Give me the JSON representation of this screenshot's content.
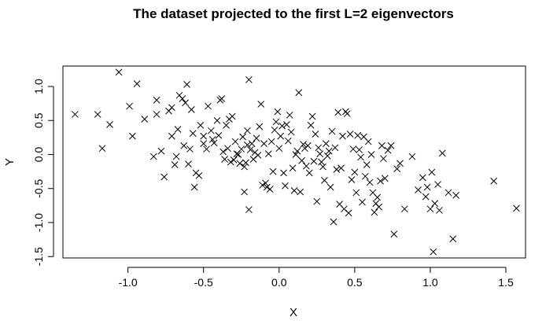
{
  "chart_data": {
    "type": "scatter",
    "title": "The dataset projected to the first L=2 eigenvectors",
    "xlabel": "X",
    "ylabel": "Y",
    "xlim": [
      -1.43,
      1.63
    ],
    "ylim": [
      -1.52,
      1.3
    ],
    "xticks": [
      -1.0,
      -0.5,
      0.0,
      0.5,
      1.0,
      1.5
    ],
    "xtick_labels": [
      "-1.0",
      "-0.5",
      "0.0",
      "0.5",
      "1.0",
      "1.5"
    ],
    "yticks": [
      -1.5,
      -1.0,
      -0.5,
      0.0,
      0.5,
      1.0
    ],
    "ytick_labels": [
      "-1.5",
      "-1.0",
      "-0.5",
      "0.0",
      "0.5",
      "1.0"
    ],
    "marker": "x",
    "grid": false,
    "points": [
      [
        -1.35,
        0.59
      ],
      [
        -1.2,
        0.59
      ],
      [
        -1.17,
        0.09
      ],
      [
        -1.12,
        0.44
      ],
      [
        -1.06,
        1.21
      ],
      [
        -0.99,
        0.71
      ],
      [
        -0.97,
        0.27
      ],
      [
        -0.94,
        1.04
      ],
      [
        -0.89,
        0.52
      ],
      [
        -0.83,
        -0.03
      ],
      [
        -0.81,
        0.59
      ],
      [
        -0.81,
        0.8
      ],
      [
        -0.78,
        0.05
      ],
      [
        -0.76,
        -0.33
      ],
      [
        -0.73,
        0.64
      ],
      [
        -0.71,
        0.69
      ],
      [
        -0.71,
        0.27
      ],
      [
        -0.69,
        -0.15
      ],
      [
        -0.68,
        -0.03
      ],
      [
        -0.67,
        0.37
      ],
      [
        -0.66,
        0.87
      ],
      [
        -0.64,
        0.82
      ],
      [
        -0.63,
        0.13
      ],
      [
        -0.62,
        0.76
      ],
      [
        -0.61,
        1.03
      ],
      [
        -0.6,
        -0.14
      ],
      [
        -0.59,
        0.08
      ],
      [
        -0.58,
        0.66
      ],
      [
        -0.57,
        0.31
      ],
      [
        -0.56,
        -0.48
      ],
      [
        -0.55,
        -0.27
      ],
      [
        -0.53,
        -0.31
      ],
      [
        -0.52,
        0.43
      ],
      [
        -0.5,
        0.16
      ],
      [
        -0.5,
        0.27
      ],
      [
        -0.48,
        0.08
      ],
      [
        -0.47,
        0.71
      ],
      [
        -0.45,
        0.35
      ],
      [
        -0.44,
        0.22
      ],
      [
        -0.43,
        0.17
      ],
      [
        -0.41,
        0.5
      ],
      [
        -0.4,
        0.28
      ],
      [
        -0.39,
        0.8
      ],
      [
        -0.38,
        0.82
      ],
      [
        -0.37,
        0.04
      ],
      [
        -0.36,
        -0.07
      ],
      [
        -0.35,
        0.43
      ],
      [
        -0.34,
        0.09
      ],
      [
        -0.33,
        0.52
      ],
      [
        -0.32,
        -0.11
      ],
      [
        -0.31,
        0.56
      ],
      [
        -0.3,
        -0.08
      ],
      [
        -0.29,
        0.19
      ],
      [
        -0.28,
        0.01
      ],
      [
        -0.27,
        0.0
      ],
      [
        -0.26,
        -0.13
      ],
      [
        -0.25,
        0.08
      ],
      [
        -0.24,
        0.26
      ],
      [
        -0.23,
        -0.55
      ],
      [
        -0.23,
        -0.18
      ],
      [
        -0.22,
        -0.12
      ],
      [
        -0.21,
        0.14
      ],
      [
        -0.21,
        0.35
      ],
      [
        -0.2,
        -0.81
      ],
      [
        -0.2,
        1.1
      ],
      [
        -0.19,
        0.07
      ],
      [
        -0.18,
        0.16
      ],
      [
        -0.17,
        -0.07
      ],
      [
        -0.16,
        0.03
      ],
      [
        -0.15,
        0.24
      ],
      [
        -0.14,
        -0.01
      ],
      [
        -0.13,
        0.41
      ],
      [
        -0.12,
        0.74
      ],
      [
        -0.11,
        -0.45
      ],
      [
        -0.1,
        0.16
      ],
      [
        -0.09,
        -0.42
      ],
      [
        -0.08,
        -0.48
      ],
      [
        -0.07,
        0.01
      ],
      [
        -0.06,
        -0.51
      ],
      [
        -0.05,
        0.19
      ],
      [
        -0.04,
        -0.25
      ],
      [
        -0.03,
        0.36
      ],
      [
        -0.02,
        0.48
      ],
      [
        -0.01,
        0.63
      ],
      [
        0.0,
        0.09
      ],
      [
        0.01,
        0.27
      ],
      [
        0.02,
        0.42
      ],
      [
        0.03,
        -0.27
      ],
      [
        0.04,
        -0.46
      ],
      [
        0.05,
        0.44
      ],
      [
        0.06,
        0.2
      ],
      [
        0.07,
        0.58
      ],
      [
        0.08,
        0.33
      ],
      [
        0.09,
        -0.2
      ],
      [
        0.1,
        -0.53
      ],
      [
        0.11,
        0.0
      ],
      [
        0.12,
        0.05
      ],
      [
        0.13,
        0.91
      ],
      [
        0.14,
        -0.55
      ],
      [
        0.15,
        -0.09
      ],
      [
        0.16,
        0.15
      ],
      [
        0.17,
        0.09
      ],
      [
        0.18,
        -0.17
      ],
      [
        0.19,
        0.13
      ],
      [
        0.2,
        -0.27
      ],
      [
        0.21,
        0.43
      ],
      [
        0.22,
        0.56
      ],
      [
        0.23,
        -0.1
      ],
      [
        0.24,
        0.3
      ],
      [
        0.25,
        -0.69
      ],
      [
        0.26,
        0.1
      ],
      [
        0.27,
        0.01
      ],
      [
        0.28,
        -0.11
      ],
      [
        0.29,
        -0.18
      ],
      [
        0.3,
        -0.38
      ],
      [
        0.31,
        0.16
      ],
      [
        0.32,
        -0.02
      ],
      [
        0.33,
        0.05
      ],
      [
        0.34,
        -0.48
      ],
      [
        0.35,
        0.34
      ],
      [
        0.36,
        -0.99
      ],
      [
        0.37,
        0.1
      ],
      [
        0.38,
        -0.22
      ],
      [
        0.39,
        0.62
      ],
      [
        0.4,
        -0.73
      ],
      [
        0.41,
        -0.2
      ],
      [
        0.42,
        0.27
      ],
      [
        0.43,
        -0.8
      ],
      [
        0.44,
        0.63
      ],
      [
        0.45,
        0.6
      ],
      [
        0.46,
        -0.86
      ],
      [
        0.47,
        0.3
      ],
      [
        0.48,
        -0.37
      ],
      [
        0.49,
        0.08
      ],
      [
        0.5,
        -0.26
      ],
      [
        0.51,
        -0.56
      ],
      [
        0.52,
        0.28
      ],
      [
        0.53,
        0.07
      ],
      [
        0.54,
        -0.04
      ],
      [
        0.55,
        -0.7
      ],
      [
        0.56,
        0.26
      ],
      [
        0.57,
        -0.32
      ],
      [
        0.58,
        -0.15
      ],
      [
        0.59,
        0.19
      ],
      [
        0.6,
        -0.41
      ],
      [
        0.61,
        0.0
      ],
      [
        0.62,
        -0.56
      ],
      [
        0.63,
        -0.85
      ],
      [
        0.64,
        -0.72
      ],
      [
        0.65,
        -0.63
      ],
      [
        0.66,
        -0.77
      ],
      [
        0.67,
        -0.39
      ],
      [
        0.68,
        0.13
      ],
      [
        0.69,
        -0.06
      ],
      [
        0.7,
        -0.35
      ],
      [
        0.72,
        0.06
      ],
      [
        0.74,
        0.13
      ],
      [
        0.76,
        -1.17
      ],
      [
        0.78,
        -0.21
      ],
      [
        0.8,
        -0.13
      ],
      [
        0.83,
        -0.8
      ],
      [
        0.88,
        -0.03
      ],
      [
        0.92,
        -0.52
      ],
      [
        0.95,
        -0.34
      ],
      [
        0.97,
        -0.62
      ],
      [
        0.98,
        -0.48
      ],
      [
        1.0,
        -0.8
      ],
      [
        1.01,
        -0.26
      ],
      [
        1.02,
        -1.43
      ],
      [
        1.03,
        -0.72
      ],
      [
        1.05,
        -0.44
      ],
      [
        1.06,
        -0.82
      ],
      [
        1.08,
        0.02
      ],
      [
        1.12,
        -0.56
      ],
      [
        1.15,
        -1.24
      ],
      [
        1.17,
        -0.6
      ],
      [
        1.42,
        -0.39
      ],
      [
        1.57,
        -0.79
      ]
    ]
  }
}
